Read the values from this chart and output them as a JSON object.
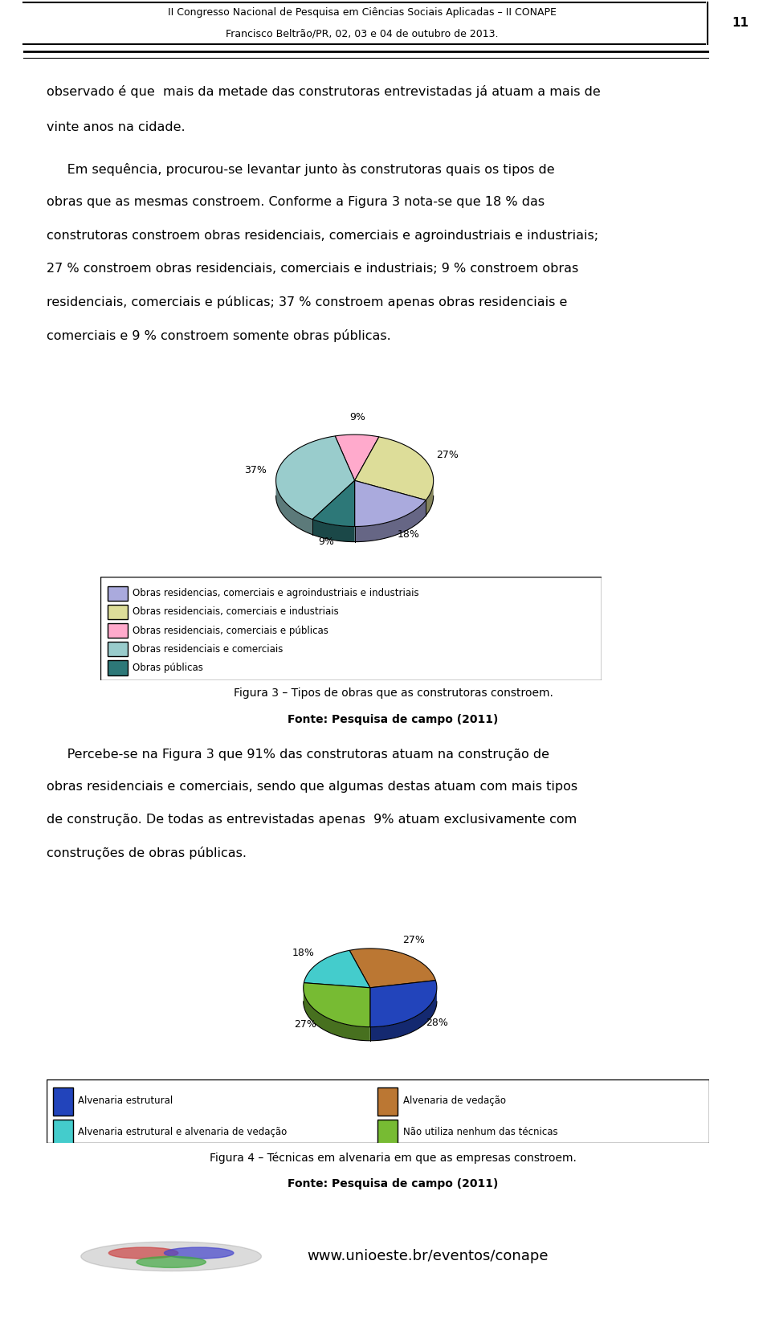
{
  "page_title_line1": "II Congresso Nacional de Pesquisa em Ciências Sociais Aplicadas – II CONAPE",
  "page_title_line2": "Francisco Beltrão/PR, 02, 03 e 04 de outubro de 2013.",
  "page_number": "11",
  "body_text_1a": "observado é que  mais da metade das construtoras entrevistadas já atuam a mais de",
  "body_text_1b": "vinte anos na cidade.",
  "body_text_2a": "     Em sequência, procurou-se levantar junto às construtoras quais os tipos de",
  "body_text_2b": "obras que as mesmas constroem. Conforme a Figura 3 nota-se que 18 % das",
  "body_text_2c": "construtoras constroem obras residenciais, comerciais e agroindustriais e industriais;",
  "body_text_2d": "27 % constroem obras residenciais, comerciais e industriais; 9 % constroem obras",
  "body_text_2e": "residenciais, comerciais e públicas; 37 % constroem apenas obras residenciais e",
  "body_text_2f": "comerciais e 9 % constroem somente obras públicas.",
  "chart1_values": [
    18,
    27,
    9,
    37,
    9
  ],
  "chart1_labels": [
    "18%",
    "27%",
    "9%",
    "37%",
    "9%"
  ],
  "chart1_colors": [
    "#AAAADD",
    "#DDDD99",
    "#FFAACC",
    "#99CCCC",
    "#2D7878"
  ],
  "chart1_legend": [
    "Obras residencias, comerciais e agroindustriais e industriais",
    "Obras residenciais, comerciais e industriais",
    "Obras residenciais, comerciais e públicas",
    "Obras residenciais e comerciais",
    "Obras públicas"
  ],
  "chart1_cap1": "Figura 3 – Tipos de obras que as construtoras constroem.",
  "chart1_cap2": "Fonte: Pesquisa de campo (2011)",
  "body_text_3a": "     Percebe-se na Figura 3 que 91% das construtoras atuam na construção de",
  "body_text_3b": "obras residenciais e comerciais, sendo que algumas destas atuam com mais tipos",
  "body_text_3c": "de construção. De todas as entrevistadas apenas  9% atuam exclusivamente com",
  "body_text_3d": "construções de obras públicas.",
  "chart2_values": [
    28,
    27,
    18,
    27
  ],
  "chart2_labels": [
    "28%",
    "27%",
    "18%",
    "27%"
  ],
  "chart2_colors": [
    "#2244BB",
    "#BB7733",
    "#44CCCC",
    "#77BB33"
  ],
  "chart2_legend": [
    "Alvenaria estrutural",
    "Alvenaria de vedação",
    "Alvenaria estrutural e alvenaria de vedação",
    "Não utiliza nenhum das técnicas"
  ],
  "chart2_cap1": "Figura 4 – Técnicas em alvenaria em que as empresas constroem.",
  "chart2_cap2": "Fonte: Pesquisa de campo (2011)",
  "website": "www.unioeste.br/eventos/conape"
}
